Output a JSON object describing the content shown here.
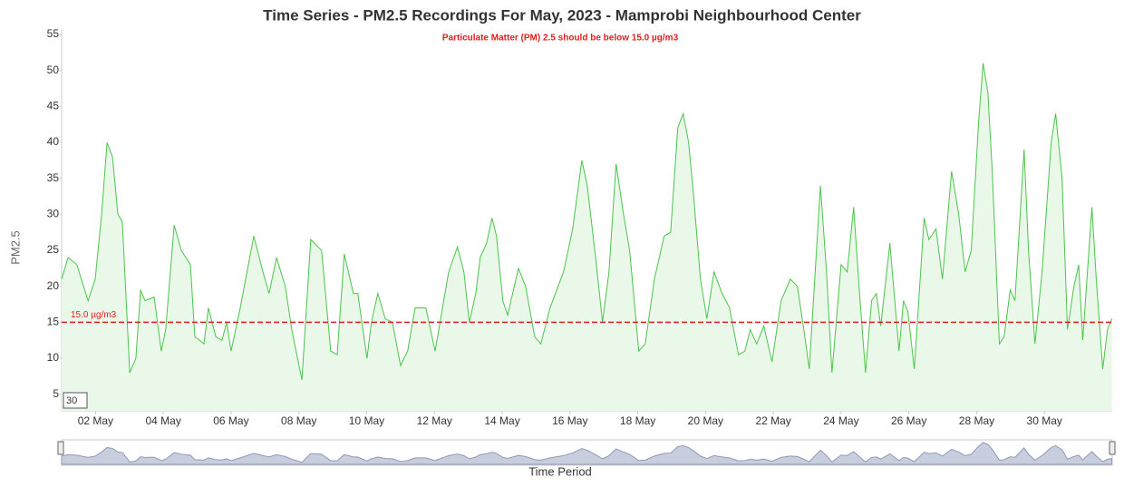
{
  "chart_data": {
    "type": "area",
    "title": "Time Series - PM2.5 Recordings For May, 2023 - Mamprobi Neighbourhood Center",
    "subtitle": "Particulate Matter (PM) 2.5 should be below 15.0 µg/m3",
    "y_label": "PM2.5",
    "x_label": "Time Period",
    "input_box": "30",
    "threshold": {
      "value": 15,
      "label": "15.0 µg/m3",
      "color": "#e02020"
    },
    "xlim": [
      1,
      32
    ],
    "xticks": [
      {
        "value": 2,
        "label": "02 May"
      },
      {
        "value": 4,
        "label": "04 May"
      },
      {
        "value": 6,
        "label": "06 May"
      },
      {
        "value": 8,
        "label": "08 May"
      },
      {
        "value": 10,
        "label": "10 May"
      },
      {
        "value": 12,
        "label": "12 May"
      },
      {
        "value": 14,
        "label": "14 May"
      },
      {
        "value": 16,
        "label": "16 May"
      },
      {
        "value": 18,
        "label": "18 May"
      },
      {
        "value": 20,
        "label": "20 May"
      },
      {
        "value": 22,
        "label": "22 May"
      },
      {
        "value": 24,
        "label": "24 May"
      },
      {
        "value": 26,
        "label": "26 May"
      },
      {
        "value": 28,
        "label": "28 May"
      },
      {
        "value": 30,
        "label": "30 May"
      }
    ],
    "ylim": [
      2.7,
      55
    ],
    "yticks": [
      5,
      10,
      15,
      20,
      25,
      30,
      35,
      40,
      45,
      50,
      55
    ],
    "color": "#4cc44c",
    "fill": "#e9f8e9",
    "navigator_color": "#8e9ab8",
    "x": [
      1.0,
      1.19,
      1.45,
      1.78,
      1.99,
      2.18,
      2.34,
      2.5,
      2.66,
      2.79,
      3.01,
      3.19,
      3.33,
      3.46,
      3.73,
      3.94,
      4.07,
      4.32,
      4.53,
      4.8,
      4.93,
      5.2,
      5.33,
      5.55,
      5.73,
      5.87,
      6.0,
      6.27,
      6.67,
      6.94,
      7.12,
      7.34,
      7.6,
      7.79,
      8.09,
      8.35,
      8.67,
      8.94,
      9.13,
      9.34,
      9.61,
      9.74,
      10.01,
      10.14,
      10.33,
      10.55,
      10.76,
      11.0,
      11.21,
      11.43,
      11.75,
      12.02,
      12.42,
      12.68,
      12.87,
      13.03,
      13.22,
      13.35,
      13.54,
      13.7,
      13.83,
      14.02,
      14.16,
      14.48,
      14.69,
      14.96,
      15.14,
      15.41,
      15.81,
      16.08,
      16.35,
      16.51,
      16.78,
      16.96,
      17.15,
      17.36,
      17.58,
      17.76,
      18.03,
      18.22,
      18.49,
      18.78,
      18.97,
      19.18,
      19.34,
      19.5,
      19.64,
      19.85,
      20.04,
      20.25,
      20.49,
      20.71,
      20.97,
      21.16,
      21.32,
      21.51,
      21.72,
      21.96,
      22.23,
      22.5,
      22.71,
      22.9,
      23.06,
      23.39,
      23.57,
      23.73,
      24.0,
      24.18,
      24.37,
      24.53,
      24.72,
      24.9,
      25.04,
      25.17,
      25.44,
      25.71,
      25.84,
      25.97,
      26.16,
      26.45,
      26.59,
      26.8,
      26.99,
      27.26,
      27.47,
      27.66,
      27.84,
      28.06,
      28.19,
      28.33,
      28.46,
      28.67,
      28.81,
      28.99,
      29.13,
      29.4,
      29.53,
      29.72,
      29.93,
      30.2,
      30.33,
      30.52,
      30.68,
      30.87,
      31.01,
      31.13,
      31.4,
      31.53,
      31.72,
      31.86,
      31.99
    ],
    "values": [
      21,
      24,
      23,
      18,
      21,
      30,
      40,
      38,
      30,
      29,
      8,
      10,
      19.5,
      18,
      18.5,
      11,
      14,
      28.5,
      25,
      23,
      13,
      12,
      17,
      13,
      12.5,
      15,
      11,
      17,
      27,
      22,
      19,
      24,
      20,
      14,
      7,
      26.5,
      25,
      11,
      10.5,
      24.5,
      19,
      19,
      10,
      15,
      19,
      15.5,
      15,
      9,
      11,
      17,
      17,
      11,
      22,
      25.5,
      22,
      15,
      19,
      24,
      26,
      29.5,
      27,
      18,
      16,
      22.5,
      20,
      13,
      12,
      17,
      22,
      28,
      37.5,
      34,
      23,
      15,
      22,
      37,
      30,
      25,
      11,
      12,
      21,
      27,
      27.5,
      42,
      44,
      40,
      33,
      21,
      15.5,
      22,
      19,
      17,
      10.5,
      11,
      14,
      12,
      14.5,
      9.5,
      18,
      21,
      20,
      14,
      8.5,
      34,
      22,
      8,
      23,
      22,
      31,
      20,
      8,
      18,
      19,
      14.5,
      26,
      11,
      18,
      16.5,
      8.5,
      29.5,
      26.5,
      28,
      21,
      36,
      30,
      22,
      25,
      43,
      51,
      47,
      36,
      12,
      13,
      19.5,
      18,
      39,
      25,
      12,
      22,
      40,
      44,
      35,
      14,
      20,
      23,
      12.5,
      31,
      21,
      8.5,
      14,
      15.5
    ]
  }
}
